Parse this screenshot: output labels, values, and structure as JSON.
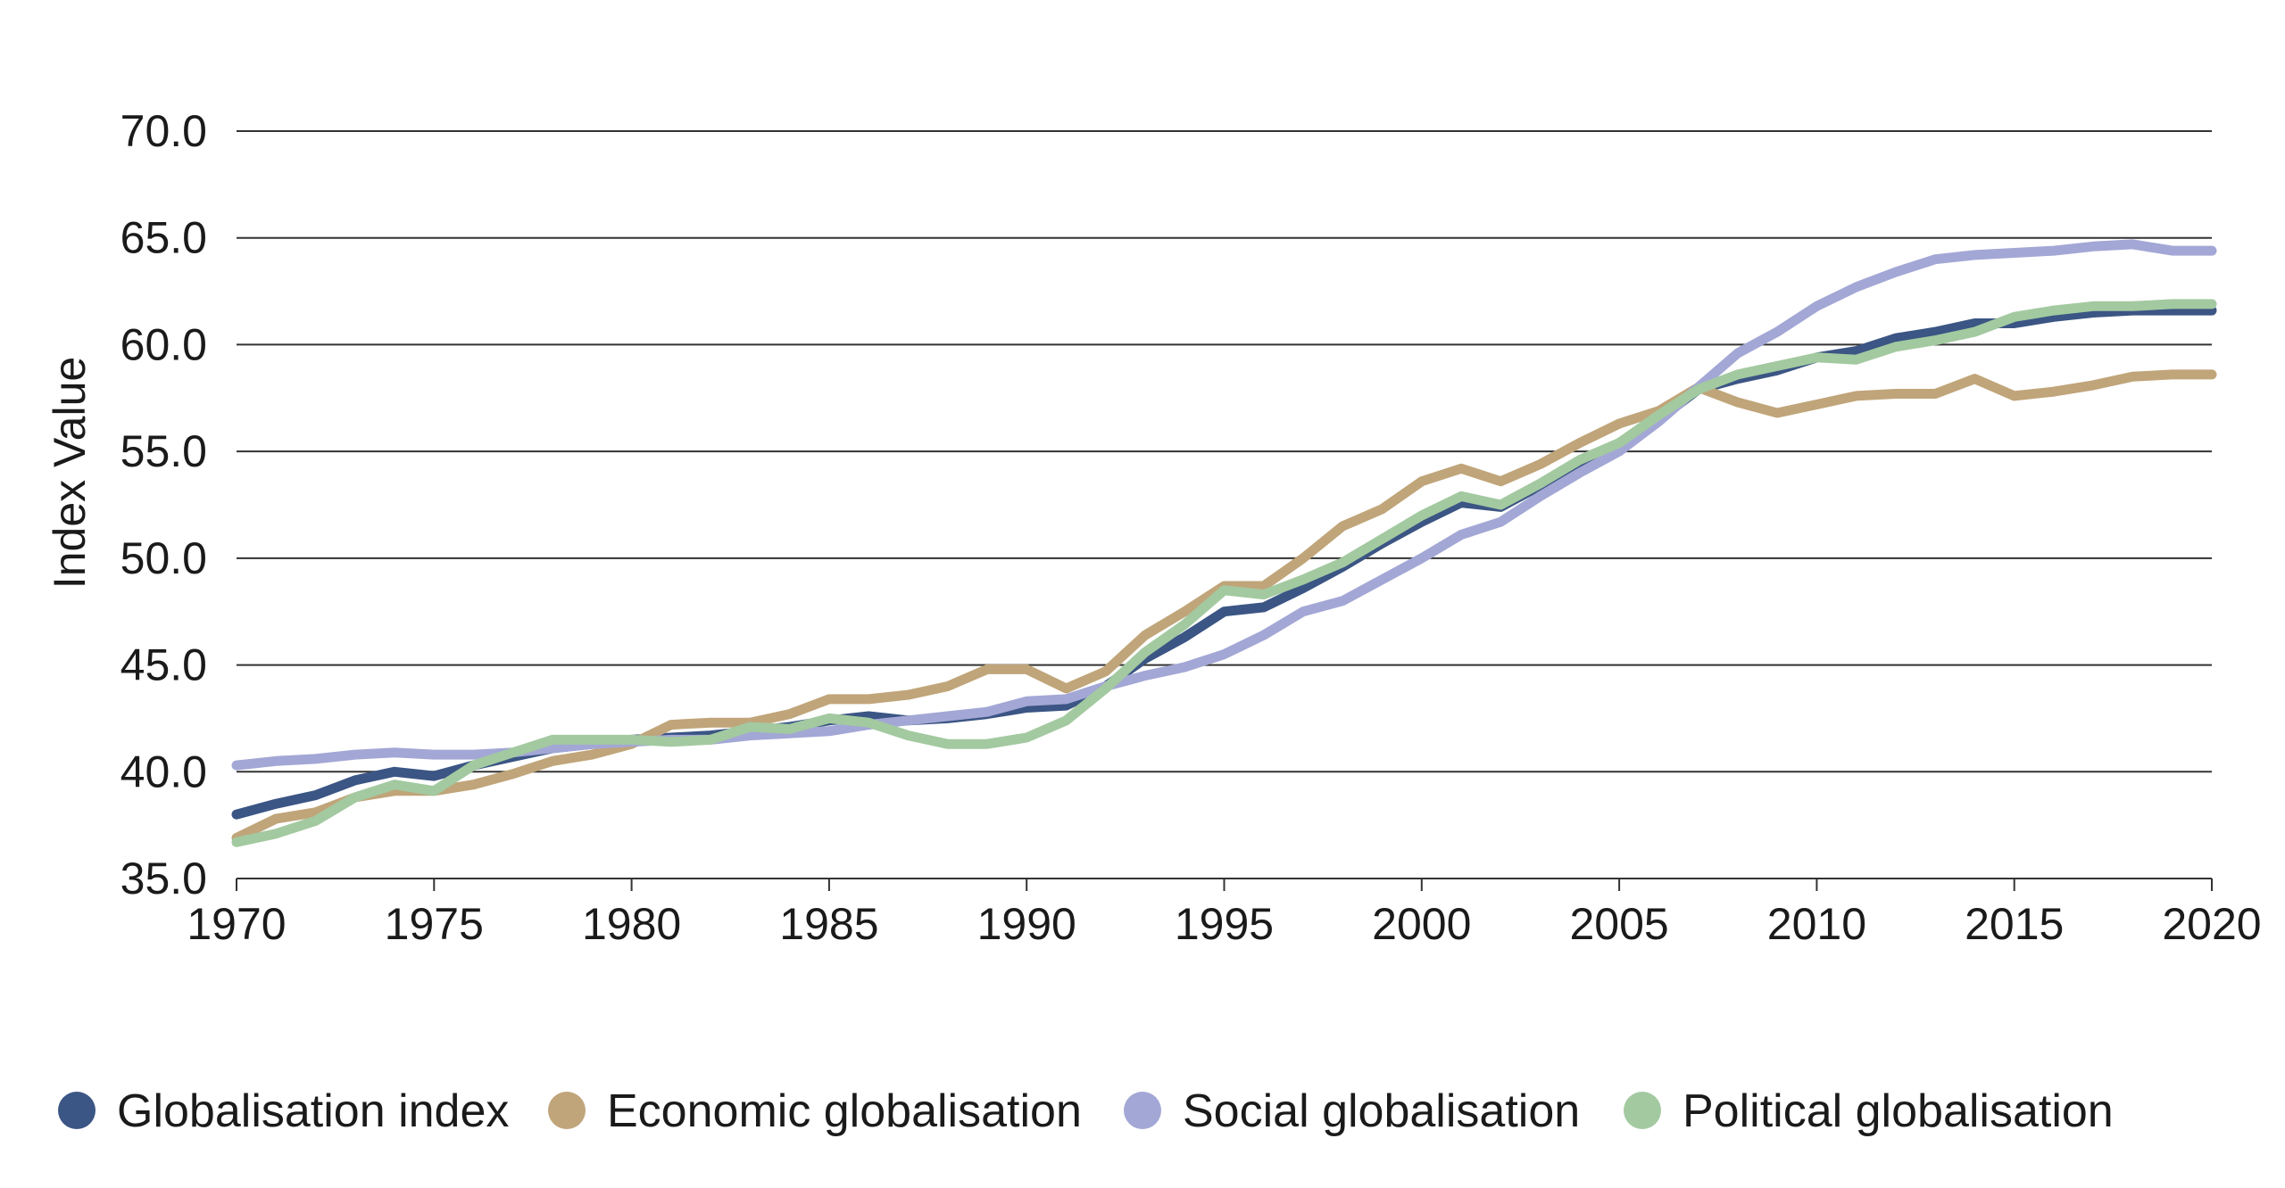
{
  "chart_data": {
    "type": "line",
    "title": "",
    "xlabel": "",
    "ylabel": "Index Value",
    "xlim": [
      1970,
      2020
    ],
    "ylim": [
      35,
      70
    ],
    "xticks": [
      "1970",
      "1975",
      "1980",
      "1985",
      "1990",
      "1995",
      "2000",
      "2005",
      "2010",
      "2015",
      "2020"
    ],
    "yticks": [
      "35.0",
      "40.0",
      "45.0",
      "50.0",
      "55.0",
      "60.0",
      "65.0",
      "70.0"
    ],
    "grid": "horizontal",
    "legend_position": "bottom",
    "x": [
      1970,
      1971,
      1972,
      1973,
      1974,
      1975,
      1976,
      1977,
      1978,
      1979,
      1980,
      1981,
      1982,
      1983,
      1984,
      1985,
      1986,
      1987,
      1988,
      1989,
      1990,
      1991,
      1992,
      1993,
      1994,
      1995,
      1996,
      1997,
      1998,
      1999,
      2000,
      2001,
      2002,
      2003,
      2004,
      2005,
      2006,
      2007,
      2008,
      2009,
      2010,
      2011,
      2012,
      2013,
      2014,
      2015,
      2016,
      2017,
      2018,
      2019,
      2020
    ],
    "series": [
      {
        "name": "Globalisation index",
        "color": "#3b5584",
        "values": [
          38.0,
          38.5,
          38.9,
          39.6,
          40.0,
          39.8,
          40.3,
          40.7,
          41.1,
          41.3,
          41.5,
          41.6,
          41.7,
          41.9,
          42.1,
          42.4,
          42.6,
          42.4,
          42.5,
          42.7,
          43.0,
          43.1,
          44.0,
          45.3,
          46.3,
          47.5,
          47.7,
          48.6,
          49.6,
          50.7,
          51.7,
          52.6,
          52.4,
          53.4,
          54.4,
          55.4,
          56.5,
          57.9,
          58.4,
          58.8,
          59.4,
          59.7,
          60.3,
          60.6,
          61.0,
          61.0,
          61.3,
          61.5,
          61.6,
          61.6,
          61.6
        ]
      },
      {
        "name": "Economic globalisation",
        "color": "#c0a57a",
        "values": [
          36.9,
          37.8,
          38.1,
          38.8,
          39.1,
          39.1,
          39.4,
          39.9,
          40.5,
          40.8,
          41.3,
          42.2,
          42.3,
          42.3,
          42.7,
          43.4,
          43.4,
          43.6,
          44.0,
          44.8,
          44.8,
          43.9,
          44.7,
          46.4,
          47.5,
          48.7,
          48.7,
          50.0,
          51.5,
          52.3,
          53.6,
          54.2,
          53.6,
          54.4,
          55.4,
          56.3,
          56.9,
          58.0,
          57.3,
          56.8,
          57.2,
          57.6,
          57.7,
          57.7,
          58.4,
          57.6,
          57.8,
          58.1,
          58.5,
          58.6,
          58.6
        ]
      },
      {
        "name": "Social globalisation",
        "color": "#a3a7d5",
        "values": [
          40.3,
          40.5,
          40.6,
          40.8,
          40.9,
          40.8,
          40.8,
          40.9,
          41.1,
          41.3,
          41.4,
          41.5,
          41.5,
          41.7,
          41.8,
          41.9,
          42.2,
          42.4,
          42.6,
          42.8,
          43.3,
          43.4,
          44.0,
          44.5,
          44.9,
          45.5,
          46.4,
          47.5,
          48.0,
          49.0,
          50.0,
          51.1,
          51.7,
          52.9,
          54.0,
          55.0,
          56.4,
          58.0,
          59.6,
          60.6,
          61.8,
          62.7,
          63.4,
          64.0,
          64.2,
          64.3,
          64.4,
          64.6,
          64.7,
          64.4,
          64.4
        ]
      },
      {
        "name": "Political globalisation",
        "color": "#a3c9a0",
        "values": [
          36.7,
          37.1,
          37.7,
          38.8,
          39.4,
          39.1,
          40.3,
          40.9,
          41.5,
          41.5,
          41.5,
          41.4,
          41.5,
          42.1,
          42.0,
          42.5,
          42.3,
          41.7,
          41.3,
          41.3,
          41.6,
          42.4,
          43.9,
          45.6,
          46.9,
          48.5,
          48.3,
          49.0,
          49.8,
          50.9,
          52.0,
          52.9,
          52.5,
          53.5,
          54.6,
          55.4,
          56.7,
          57.9,
          58.6,
          59.0,
          59.4,
          59.3,
          59.9,
          60.2,
          60.6,
          61.3,
          61.6,
          61.8,
          61.8,
          61.9,
          61.9
        ]
      }
    ]
  }
}
